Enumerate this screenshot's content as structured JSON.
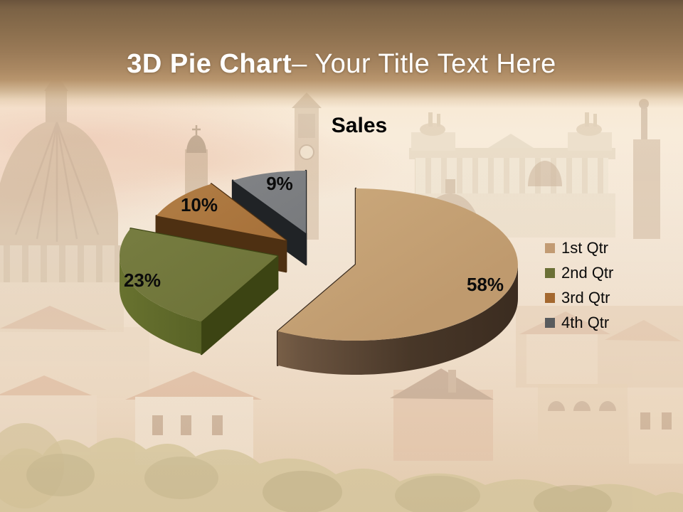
{
  "slide": {
    "title_bold": "3D Pie Chart",
    "title_rest": "– Your Title Text Here"
  },
  "chart_data": {
    "type": "pie",
    "style": "3d-exploded",
    "title": "Sales",
    "direction": "clockwise",
    "start_angle_deg": 0,
    "legend_position": "right",
    "labels": [
      "1st Qtr",
      "2nd Qtr",
      "3rd Qtr",
      "4th Qtr"
    ],
    "values": [
      58,
      23,
      10,
      9
    ],
    "series": [
      {
        "label": "1st Qtr",
        "value": 58,
        "pct_label": "58%",
        "color_top": "#bf9a6e",
        "color_top_light": "#cba97c",
        "side_gradient": [
          "#a8865e",
          "#6b5440",
          "#483728",
          "#3b2c20"
        ],
        "color_cut": "#3b2c1f",
        "legend_color": "#c29b73"
      },
      {
        "label": "2nd Qtr",
        "value": 23,
        "pct_label": "23%",
        "color_top": "#6b7036",
        "color_top_light": "#767c40",
        "side_gradient": [
          "#68722f",
          "#4a541e",
          "#363e13"
        ],
        "color_cut": "#3c4413",
        "legend_color": "#6b7036"
      },
      {
        "label": "3rd Qtr",
        "value": 10,
        "pct_label": "10%",
        "color_top": "#a06831",
        "color_top_light": "#ae7a42",
        "side_gradient": [
          "#7a5222",
          "#5c3a16"
        ],
        "color_cut": "#4e3012",
        "legend_color": "#a4682f"
      },
      {
        "label": "4th Qtr",
        "value": 9,
        "pct_label": "9%",
        "color_top": "#717376",
        "color_top_light": "#808285",
        "side_gradient": [
          "#474a4c",
          "#26292b"
        ],
        "color_cut": "#202326",
        "legend_color": "#595b5d"
      }
    ]
  }
}
